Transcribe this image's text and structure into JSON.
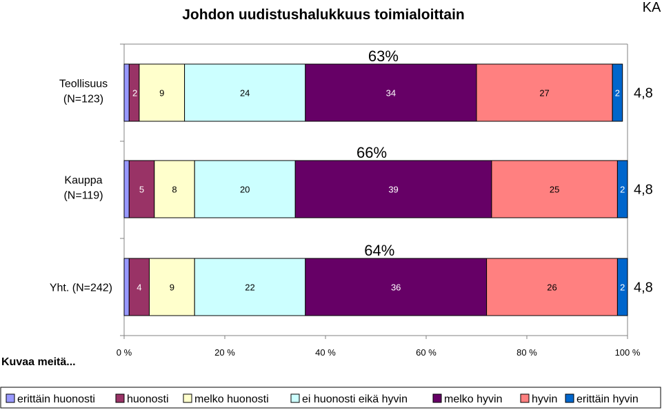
{
  "chart_data": {
    "type": "bar",
    "orientation": "horizontal",
    "stacked": "100%",
    "title": "Johdon uudistushalukkuus toimialoittain",
    "corner_label": "KA",
    "subtitle": "Kuvaa meitä...",
    "categories": [
      {
        "label": [
          "Teollisuus",
          "(N=123)"
        ],
        "values": [
          1,
          2,
          9,
          24,
          34,
          27,
          2
        ],
        "positive_share": "63%",
        "mean": "4,8"
      },
      {
        "label": [
          "Kauppa",
          "(N=119)"
        ],
        "values": [
          1,
          5,
          8,
          20,
          39,
          25,
          2
        ],
        "positive_share": "66%",
        "mean": "4,8"
      },
      {
        "label": [
          "Yht. (N=242)"
        ],
        "values": [
          1,
          4,
          9,
          22,
          36,
          26,
          2
        ],
        "positive_share": "64%",
        "mean": "4,8"
      }
    ],
    "series": [
      {
        "name": "erittäin huonosti",
        "color": "#9999ff"
      },
      {
        "name": "huonosti",
        "color": "#993366"
      },
      {
        "name": "melko huonosti",
        "color": "#ffffcc"
      },
      {
        "name": "ei huonosti eikä hyvin",
        "color": "#ccffff"
      },
      {
        "name": "melko hyvin",
        "color": "#660066"
      },
      {
        "name": "hyvin",
        "color": "#ff8080"
      },
      {
        "name": "erittäin hyvin",
        "color": "#0066cc"
      }
    ],
    "x_ticks": [
      "0 %",
      "20 %",
      "40 %",
      "60 %",
      "80 %",
      "100 %"
    ],
    "xlim": [
      0,
      100
    ],
    "legend_position": "bottom"
  }
}
